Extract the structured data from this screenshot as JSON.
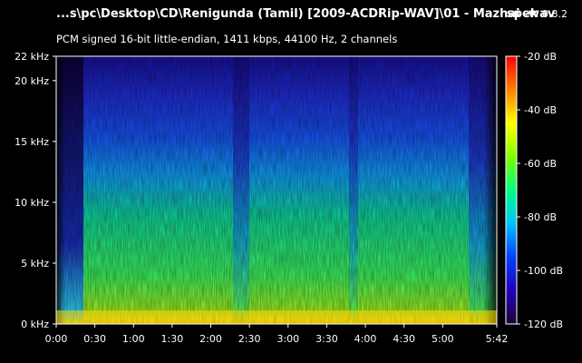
{
  "header": {
    "title": "...s\\pc\\Desktop\\CD\\Renigunda (Tamil) [2009-ACDRip-WAV]\\01 - Mazhai .wav",
    "app_name": "spek",
    "app_version": "0.8.2",
    "format_info": "PCM signed 16-bit little-endian, 1411 kbps, 44100 Hz, 2 channels"
  },
  "frequency_axis": {
    "ticks": [
      {
        "label": "0 kHz",
        "khz": 0
      },
      {
        "label": "5 kHz",
        "khz": 5
      },
      {
        "label": "10 kHz",
        "khz": 10
      },
      {
        "label": "15 kHz",
        "khz": 15
      },
      {
        "label": "20 kHz",
        "khz": 20
      },
      {
        "label": "22 kHz",
        "khz": 22
      }
    ],
    "max_khz": 22
  },
  "time_axis": {
    "ticks": [
      {
        "label": "0:00",
        "seconds": 0
      },
      {
        "label": "0:30",
        "seconds": 30
      },
      {
        "label": "1:00",
        "seconds": 60
      },
      {
        "label": "1:30",
        "seconds": 90
      },
      {
        "label": "2:00",
        "seconds": 120
      },
      {
        "label": "2:30",
        "seconds": 150
      },
      {
        "label": "3:00",
        "seconds": 180
      },
      {
        "label": "3:30",
        "seconds": 210
      },
      {
        "label": "4:00",
        "seconds": 240
      },
      {
        "label": "4:30",
        "seconds": 270
      },
      {
        "label": "5:00",
        "seconds": 300
      },
      {
        "label": "5:42",
        "seconds": 342
      }
    ],
    "duration_seconds": 342
  },
  "level_scale": {
    "ticks": [
      {
        "label": "-20 dB",
        "db": -20
      },
      {
        "label": "-40 dB",
        "db": -40
      },
      {
        "label": "-60 dB",
        "db": -60
      },
      {
        "label": "-80 dB",
        "db": -80
      },
      {
        "label": "-100 dB",
        "db": -100
      },
      {
        "label": "-120 dB",
        "db": -120
      }
    ],
    "max_db": -20,
    "min_db": -120,
    "gradient_colors": [
      "#ff0000",
      "#ff8000",
      "#ffff00",
      "#80ff00",
      "#00ff80",
      "#00c0ff",
      "#0040ff",
      "#2000c0",
      "#200030"
    ]
  }
}
